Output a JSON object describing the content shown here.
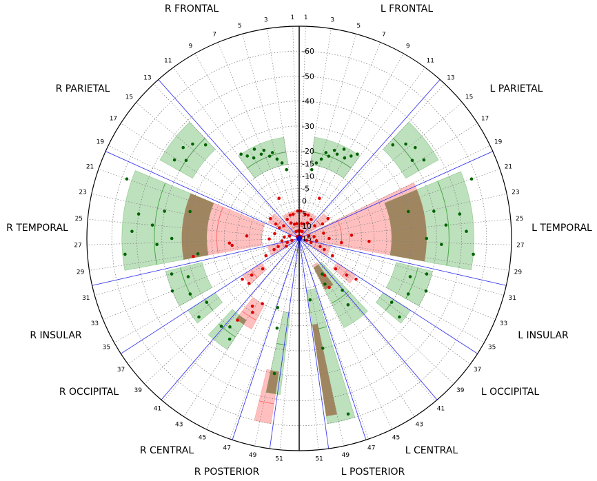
{
  "chart_data": {
    "type": "scatter",
    "projection": "polar",
    "r_axis": {
      "direction": "inverted",
      "outer_value": 15,
      "center_value": -70,
      "tick_labels": [
        "15",
        "10",
        "5",
        "0",
        "-5",
        "-10",
        "-15",
        "-20",
        "-30",
        "-40",
        "-50",
        "-60"
      ],
      "tick_values": [
        15,
        10,
        5,
        0,
        -5,
        -10,
        -15,
        -20,
        -30,
        -40,
        -50,
        -60
      ]
    },
    "angular_ticks": {
      "right_labels": [
        "1",
        "3",
        "5",
        "7",
        "9",
        "11",
        "13",
        "15",
        "17",
        "19",
        "21",
        "23",
        "25",
        "27",
        "29",
        "31",
        "33",
        "35",
        "37",
        "39",
        "41",
        "43",
        "45",
        "47",
        "49",
        "51"
      ],
      "left_labels": [
        "1",
        "3",
        "5",
        "7",
        "9",
        "11",
        "13",
        "15",
        "17",
        "19",
        "21",
        "23",
        "25",
        "27",
        "29",
        "31",
        "33",
        "35",
        "37",
        "39",
        "41",
        "43",
        "45",
        "47",
        "49",
        "51"
      ]
    },
    "region_labels": {
      "left": [
        "R FRONTAL",
        "R PARIETAL",
        "R TEMPORAL",
        "R INSULAR",
        "R OCCIPITAL",
        "R CENTRAL",
        "R POSTERIOR"
      ],
      "right": [
        "L FRONTAL",
        "L PARIETAL",
        "L TEMPORAL",
        "L INSULAR",
        "L OCCIPITAL",
        "L CENTRAL",
        "L POSTERIOR"
      ]
    },
    "colors": {
      "red_fill": "#ff9d9d",
      "red_line": "#ff6b6b",
      "green_fill": "#86c686",
      "green_line": "#4aa84a",
      "overlap_fill": "#9b7b55",
      "red_point": "#e00000",
      "green_point": "#006400",
      "sector_line": "#3a3af0",
      "grid": "#7f7f7f",
      "center_marker": "#1010c0"
    },
    "bands": {
      "red": [
        {
          "side": "R",
          "a0": 1.2,
          "a1": 11,
          "mean": 10,
          "lo": 4,
          "hi": 13
        },
        {
          "side": "R",
          "a0": 13.5,
          "a1": 18.5,
          "mean": 5,
          "lo": 1,
          "hi": 14
        },
        {
          "side": "R",
          "a0": 20,
          "a1": 29.5,
          "mean": -18,
          "lo": -32,
          "hi": 0
        },
        {
          "side": "R",
          "a0": 30.5,
          "a1": 35.8,
          "mean": 8,
          "lo": 2,
          "hi": 13
        },
        {
          "side": "R",
          "a0": 36.2,
          "a1": 39,
          "mean": -8,
          "lo": -12,
          "hi": -3
        },
        {
          "side": "R",
          "a0": 41.5,
          "a1": 44.5,
          "mean": -22,
          "lo": -26,
          "hi": -15
        },
        {
          "side": "R",
          "a0": 48.5,
          "a1": 50,
          "mean": -52,
          "lo": -60,
          "hi": -39
        },
        {
          "side": "L",
          "a0": 1.2,
          "a1": 11.5,
          "mean": 10,
          "lo": 4,
          "hi": 13
        },
        {
          "side": "L",
          "a0": 13.5,
          "a1": 17.5,
          "mean": 5,
          "lo": 1,
          "hi": 14
        },
        {
          "side": "L",
          "a0": 19,
          "a1": 29.5,
          "mean": -2,
          "lo": -36,
          "hi": 15
        },
        {
          "side": "L",
          "a0": 30.5,
          "a1": 35.8,
          "mean": 8,
          "lo": 2,
          "hi": 13
        },
        {
          "side": "L",
          "a0": 36.2,
          "a1": 38.5,
          "mean": -8,
          "lo": -12,
          "hi": -3
        },
        {
          "side": "L",
          "a0": 42,
          "a1": 44.8,
          "mean": -3,
          "lo": -8,
          "hi": 3
        },
        {
          "side": "L",
          "a0": 49,
          "a1": 50,
          "mean": -40,
          "lo": -57,
          "hi": -20
        }
      ],
      "green": [
        {
          "side": "R",
          "a0": 3,
          "a1": 11,
          "mean": -20,
          "lo": -26,
          "hi": -15
        },
        {
          "side": "R",
          "a0": 13,
          "a1": 18,
          "mean": -40,
          "lo": -49,
          "hi": -34
        },
        {
          "side": "R",
          "a0": 20,
          "a1": 29.5,
          "mean": -43,
          "lo": -56,
          "hi": -22
        },
        {
          "side": "R",
          "a0": 30.5,
          "a1": 35,
          "mean": -34,
          "lo": -40,
          "hi": -25
        },
        {
          "side": "R",
          "a0": 36,
          "a1": 38,
          "mean": -30,
          "lo": -38,
          "hi": -25
        },
        {
          "side": "R",
          "a0": 40,
          "a1": 43,
          "mean": -32,
          "lo": -38,
          "hi": -24
        },
        {
          "side": "R",
          "a0": 49,
          "a1": 50.5,
          "mean": -28,
          "lo": -48,
          "hi": -15
        },
        {
          "side": "L",
          "a0": 3,
          "a1": 11,
          "mean": -20,
          "lo": -26,
          "hi": -15
        },
        {
          "side": "L",
          "a0": 13,
          "a1": 18,
          "mean": -40,
          "lo": -49,
          "hi": -34
        },
        {
          "side": "L",
          "a0": 20,
          "a1": 29.5,
          "mean": -45,
          "lo": -55,
          "hi": -22
        },
        {
          "side": "L",
          "a0": 30.5,
          "a1": 35,
          "mean": -34,
          "lo": -40,
          "hi": -25
        },
        {
          "side": "L",
          "a0": 36,
          "a1": 38,
          "mean": -30,
          "lo": -38,
          "hi": -25
        },
        {
          "side": "L",
          "a0": 40,
          "a1": 44.8,
          "mean": -14,
          "lo": -25,
          "hi": 2
        },
        {
          "side": "L",
          "a0": 47.5,
          "a1": 50,
          "mean": -22,
          "lo": -60,
          "hi": -6
        }
      ]
    },
    "points": {
      "red": [
        {
          "side": "R",
          "a": 1.5,
          "v": 4
        },
        {
          "side": "R",
          "a": 2.8,
          "v": 12
        },
        {
          "side": "R",
          "a": 3.2,
          "v": 9
        },
        {
          "side": "R",
          "a": 4.5,
          "v": 5
        },
        {
          "side": "R",
          "a": 5,
          "v": 14
        },
        {
          "side": "R",
          "a": 5.8,
          "v": 9
        },
        {
          "side": "R",
          "a": 6.6,
          "v": 5
        },
        {
          "side": "R",
          "a": 7.4,
          "v": 12
        },
        {
          "side": "R",
          "a": 8.2,
          "v": -3
        },
        {
          "side": "R",
          "a": 8.6,
          "v": 8
        },
        {
          "side": "R",
          "a": 9.8,
          "v": 6
        },
        {
          "side": "R",
          "a": 10.8,
          "v": 14
        },
        {
          "side": "R",
          "a": 13.5,
          "v": 14
        },
        {
          "side": "R",
          "a": 15,
          "v": 14
        },
        {
          "side": "R",
          "a": 15.2,
          "v": 7
        },
        {
          "side": "R",
          "a": 16.5,
          "v": 1
        },
        {
          "side": "R",
          "a": 17.3,
          "v": 4
        },
        {
          "side": "R",
          "a": 18.4,
          "v": 6
        },
        {
          "side": "R",
          "a": 20.5,
          "v": 15
        },
        {
          "side": "R",
          "a": 22.5,
          "v": 11
        },
        {
          "side": "R",
          "a": 23.3,
          "v": 5
        },
        {
          "side": "R",
          "a": 25,
          "v": 9
        },
        {
          "side": "R",
          "a": 25.7,
          "v": -6
        },
        {
          "side": "R",
          "a": 26.8,
          "v": 3
        },
        {
          "side": "R",
          "a": 27.6,
          "v": -13
        },
        {
          "side": "R",
          "a": 28.2,
          "v": -12
        },
        {
          "side": "R",
          "a": 28.8,
          "v": 8
        },
        {
          "side": "R",
          "a": 29.3,
          "v": -28
        },
        {
          "side": "R",
          "a": 30.8,
          "v": 12
        },
        {
          "side": "R",
          "a": 31.8,
          "v": 10
        },
        {
          "side": "R",
          "a": 32.6,
          "v": 6
        },
        {
          "side": "R",
          "a": 33.4,
          "v": 4
        },
        {
          "side": "R",
          "a": 34.4,
          "v": 0
        },
        {
          "side": "R",
          "a": 35.5,
          "v": 9
        },
        {
          "side": "R",
          "a": 36.8,
          "v": -13
        },
        {
          "side": "R",
          "a": 37.4,
          "v": -9
        },
        {
          "side": "R",
          "a": 38,
          "v": -4
        },
        {
          "side": "R",
          "a": 38.6,
          "v": -12
        },
        {
          "side": "R",
          "a": 41.8,
          "v": -26
        },
        {
          "side": "R",
          "a": 42.5,
          "v": -18
        },
        {
          "side": "R",
          "a": 43.2,
          "v": -20
        },
        {
          "side": "R",
          "a": 44,
          "v": -15
        },
        {
          "side": "L",
          "a": 1.5,
          "v": 4
        },
        {
          "side": "L",
          "a": 2.8,
          "v": 12
        },
        {
          "side": "L",
          "a": 3.2,
          "v": 9
        },
        {
          "side": "L",
          "a": 4.5,
          "v": 5
        },
        {
          "side": "L",
          "a": 5,
          "v": 14
        },
        {
          "side": "L",
          "a": 5.8,
          "v": 9
        },
        {
          "side": "L",
          "a": 6.6,
          "v": 5
        },
        {
          "side": "L",
          "a": 7.4,
          "v": 12
        },
        {
          "side": "L",
          "a": 8.2,
          "v": -3
        },
        {
          "side": "L",
          "a": 8.6,
          "v": 8
        },
        {
          "side": "L",
          "a": 9.8,
          "v": 6
        },
        {
          "side": "L",
          "a": 10.8,
          "v": 14
        },
        {
          "side": "L",
          "a": 13.5,
          "v": 14
        },
        {
          "side": "L",
          "a": 15,
          "v": 14
        },
        {
          "side": "L",
          "a": 15.2,
          "v": 7
        },
        {
          "side": "L",
          "a": 16.5,
          "v": 1
        },
        {
          "side": "L",
          "a": 17.3,
          "v": 4
        },
        {
          "side": "L",
          "a": 20,
          "v": 15
        },
        {
          "side": "L",
          "a": 22,
          "v": 11
        },
        {
          "side": "L",
          "a": 23,
          "v": 5
        },
        {
          "side": "L",
          "a": 24.5,
          "v": 9
        },
        {
          "side": "L",
          "a": 25.5,
          "v": -6
        },
        {
          "side": "L",
          "a": 26.5,
          "v": 3
        },
        {
          "side": "L",
          "a": 27.2,
          "v": -13
        },
        {
          "side": "L",
          "a": 28.1,
          "v": -2
        },
        {
          "side": "L",
          "a": 28.7,
          "v": 8
        },
        {
          "side": "L",
          "a": 30.8,
          "v": 12
        },
        {
          "side": "L",
          "a": 31.8,
          "v": 10
        },
        {
          "side": "L",
          "a": 32.6,
          "v": 6
        },
        {
          "side": "L",
          "a": 33.4,
          "v": 4
        },
        {
          "side": "L",
          "a": 34.4,
          "v": 0
        },
        {
          "side": "L",
          "a": 36.8,
          "v": -13
        },
        {
          "side": "L",
          "a": 37.4,
          "v": -9
        },
        {
          "side": "L",
          "a": 38,
          "v": -4
        },
        {
          "side": "L",
          "a": 42.5,
          "v": -3
        },
        {
          "side": "L",
          "a": 43.4,
          "v": -8
        }
      ],
      "green": [
        {
          "side": "R",
          "a": 3.5,
          "v": -13
        },
        {
          "side": "R",
          "a": 4.2,
          "v": -16
        },
        {
          "side": "R",
          "a": 5,
          "v": -18
        },
        {
          "side": "R",
          "a": 5.5,
          "v": -21
        },
        {
          "side": "R",
          "a": 6.2,
          "v": -20
        },
        {
          "side": "R",
          "a": 6.8,
          "v": -23
        },
        {
          "side": "R",
          "a": 7.5,
          "v": -22
        },
        {
          "side": "R",
          "a": 8.2,
          "v": -25
        },
        {
          "side": "R",
          "a": 9,
          "v": -22
        },
        {
          "side": "R",
          "a": 9.8,
          "v": -24
        },
        {
          "side": "R",
          "a": 10.5,
          "v": -26
        },
        {
          "side": "R",
          "a": 13.5,
          "v": -38
        },
        {
          "side": "R",
          "a": 14.5,
          "v": -42
        },
        {
          "side": "R",
          "a": 15.5,
          "v": -44
        },
        {
          "side": "R",
          "a": 16.5,
          "v": -40
        },
        {
          "side": "R",
          "a": 17.2,
          "v": -44
        },
        {
          "side": "R",
          "a": 21,
          "v": -58
        },
        {
          "side": "R",
          "a": 22.5,
          "v": -30
        },
        {
          "side": "R",
          "a": 23.2,
          "v": -40
        },
        {
          "side": "R",
          "a": 24,
          "v": -50
        },
        {
          "side": "R",
          "a": 25,
          "v": -44
        },
        {
          "side": "R",
          "a": 25.8,
          "v": -52
        },
        {
          "side": "R",
          "a": 26.5,
          "v": -36
        },
        {
          "side": "R",
          "a": 27.2,
          "v": -42
        },
        {
          "side": "R",
          "a": 28,
          "v": -55
        },
        {
          "side": "R",
          "a": 29,
          "v": -26
        },
        {
          "side": "R",
          "a": 31,
          "v": -38
        },
        {
          "side": "R",
          "a": 32,
          "v": -32
        },
        {
          "side": "R",
          "a": 33,
          "v": -40
        },
        {
          "side": "R",
          "a": 34.3,
          "v": -34
        },
        {
          "side": "R",
          "a": 36.5,
          "v": -30
        },
        {
          "side": "R",
          "a": 37.5,
          "v": -36
        },
        {
          "side": "R",
          "a": 40.5,
          "v": -32
        },
        {
          "side": "R",
          "a": 41.5,
          "v": -30
        },
        {
          "side": "R",
          "a": 42.5,
          "v": -34
        },
        {
          "side": "R",
          "a": 47.5,
          "v": -14
        },
        {
          "side": "R",
          "a": 48.5,
          "v": -22
        },
        {
          "side": "R",
          "a": 49.5,
          "v": -40
        },
        {
          "side": "L",
          "a": 3.5,
          "v": -13
        },
        {
          "side": "L",
          "a": 4.2,
          "v": -16
        },
        {
          "side": "L",
          "a": 5,
          "v": -18
        },
        {
          "side": "L",
          "a": 5.5,
          "v": -21
        },
        {
          "side": "L",
          "a": 6.2,
          "v": -20
        },
        {
          "side": "L",
          "a": 6.8,
          "v": -23
        },
        {
          "side": "L",
          "a": 7.5,
          "v": -22
        },
        {
          "side": "L",
          "a": 8.2,
          "v": -25
        },
        {
          "side": "L",
          "a": 9,
          "v": -22
        },
        {
          "side": "L",
          "a": 9.8,
          "v": -24
        },
        {
          "side": "L",
          "a": 10.5,
          "v": -26
        },
        {
          "side": "L",
          "a": 13.5,
          "v": -38
        },
        {
          "side": "L",
          "a": 14.5,
          "v": -42
        },
        {
          "side": "L",
          "a": 15.5,
          "v": -44
        },
        {
          "side": "L",
          "a": 16.5,
          "v": -40
        },
        {
          "side": "L",
          "a": 17.2,
          "v": -44
        },
        {
          "side": "L",
          "a": 21,
          "v": -58
        },
        {
          "side": "L",
          "a": 22.5,
          "v": -30
        },
        {
          "side": "L",
          "a": 23.2,
          "v": -40
        },
        {
          "side": "L",
          "a": 24,
          "v": -50
        },
        {
          "side": "L",
          "a": 25,
          "v": -44
        },
        {
          "side": "L",
          "a": 25.8,
          "v": -52
        },
        {
          "side": "L",
          "a": 26.5,
          "v": -36
        },
        {
          "side": "L",
          "a": 27.2,
          "v": -42
        },
        {
          "side": "L",
          "a": 28,
          "v": -55
        },
        {
          "side": "L",
          "a": 31,
          "v": -38
        },
        {
          "side": "L",
          "a": 32,
          "v": -32
        },
        {
          "side": "L",
          "a": 33,
          "v": -40
        },
        {
          "side": "L",
          "a": 34.3,
          "v": -34
        },
        {
          "side": "L",
          "a": 36.5,
          "v": -30
        },
        {
          "side": "L",
          "a": 37.5,
          "v": -36
        },
        {
          "side": "L",
          "a": 41,
          "v": -12
        },
        {
          "side": "L",
          "a": 42,
          "v": -18
        },
        {
          "side": "L",
          "a": 43,
          "v": -2
        },
        {
          "side": "L",
          "a": 44,
          "v": -6
        },
        {
          "side": "L",
          "a": 48,
          "v": -58
        },
        {
          "side": "L",
          "a": 49,
          "v": -30
        },
        {
          "side": "L",
          "a": 49.6,
          "v": -10
        }
      ]
    }
  }
}
